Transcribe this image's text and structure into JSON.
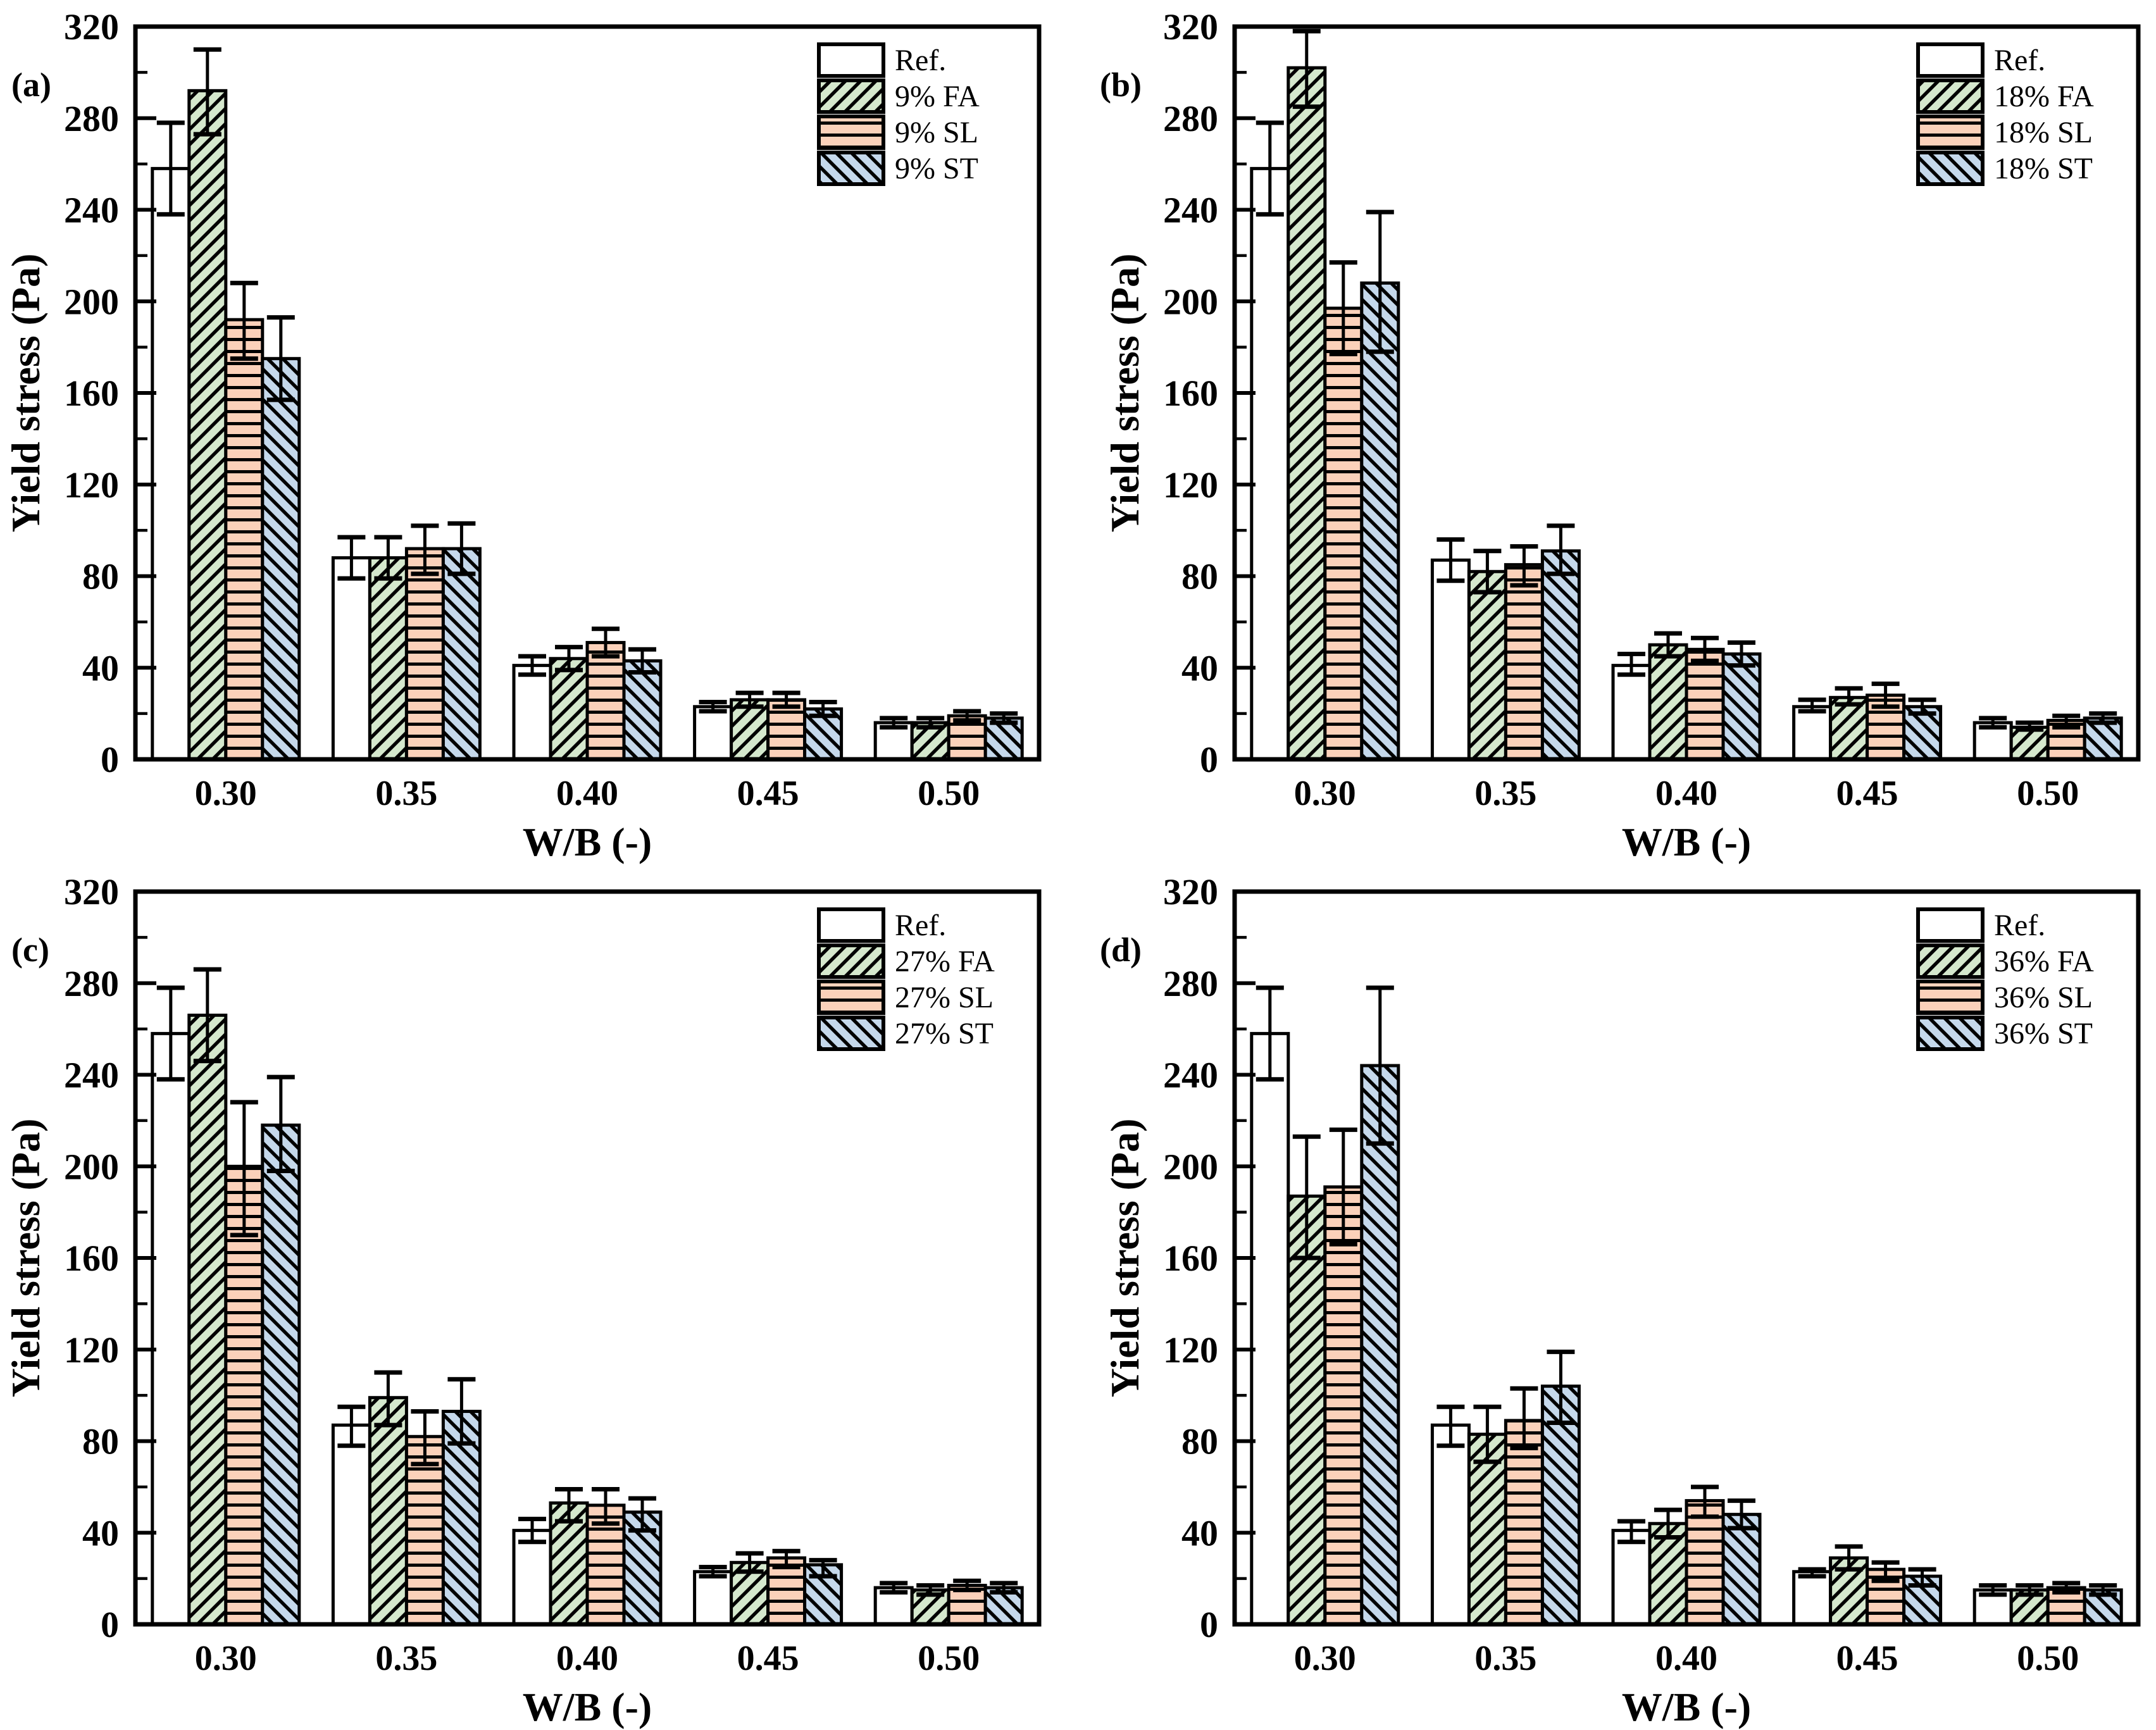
{
  "figure": {
    "background": "#ffffff",
    "ylabel": "Yield stress (Pa)",
    "xlabel": "W/B (-)",
    "categories": [
      "0.30",
      "0.35",
      "0.40",
      "0.45",
      "0.50"
    ],
    "ytick_labels": [
      "0",
      "40",
      "80",
      "120",
      "160",
      "200",
      "240",
      "280",
      "320"
    ],
    "ylim": [
      0,
      320
    ],
    "ytick_step": 40,
    "yminor_step": 20,
    "axis_color": "#000000",
    "error_bar_color": "#000000",
    "bar_edge_color": "#000000",
    "hatch_color": "#000000",
    "series_styles": [
      {
        "key": "ref",
        "fill": "#ffffff",
        "hatch": "none"
      },
      {
        "key": "fa",
        "fill": "#d5e8cd",
        "hatch": "forward-diagonal"
      },
      {
        "key": "sl",
        "fill": "#fbd1ba",
        "hatch": "horizontal"
      },
      {
        "key": "st",
        "fill": "#c5d8eb",
        "hatch": "back-diagonal"
      }
    ]
  },
  "chart_data": [
    {
      "type": "bar",
      "panel_label": "(a)",
      "xlabel": "W/B (-)",
      "ylabel": "Yield stress (Pa)",
      "categories": [
        "0.30",
        "0.35",
        "0.40",
        "0.45",
        "0.50"
      ],
      "ylim": [
        0,
        320
      ],
      "grid": false,
      "legend_position": "top-right",
      "legend": [
        "Ref.",
        "9% FA",
        "9% SL",
        "9% ST"
      ],
      "series": [
        {
          "name": "Ref.",
          "values": [
            258,
            88,
            41,
            23,
            16
          ],
          "err_low": [
            238,
            79,
            37,
            21,
            14
          ],
          "err_high": [
            278,
            97,
            45,
            25,
            18
          ]
        },
        {
          "name": "9% FA",
          "values": [
            292,
            88,
            44,
            26,
            16
          ],
          "err_low": [
            273,
            79,
            39,
            23,
            14
          ],
          "err_high": [
            310,
            97,
            49,
            29,
            18
          ]
        },
        {
          "name": "9% SL",
          "values": [
            192,
            92,
            51,
            26,
            19
          ],
          "err_low": [
            175,
            81,
            45,
            23,
            17
          ],
          "err_high": [
            208,
            102,
            57,
            29,
            21
          ]
        },
        {
          "name": "9% ST",
          "values": [
            175,
            92,
            43,
            22,
            18
          ],
          "err_low": [
            157,
            81,
            38,
            19,
            16
          ],
          "err_high": [
            193,
            103,
            48,
            25,
            20
          ]
        }
      ]
    },
    {
      "type": "bar",
      "panel_label": "(b)",
      "xlabel": "W/B (-)",
      "ylabel": "Yield stress (Pa)",
      "categories": [
        "0.30",
        "0.35",
        "0.40",
        "0.45",
        "0.50"
      ],
      "ylim": [
        0,
        320
      ],
      "grid": false,
      "legend_position": "top-right",
      "legend": [
        "Ref.",
        "18% FA",
        "18% SL",
        "18% ST"
      ],
      "series": [
        {
          "name": "Ref.",
          "values": [
            258,
            87,
            41,
            23,
            16
          ],
          "err_low": [
            238,
            78,
            37,
            21,
            14
          ],
          "err_high": [
            278,
            96,
            46,
            26,
            18
          ]
        },
        {
          "name": "18% FA",
          "values": [
            302,
            82,
            50,
            27,
            14
          ],
          "err_low": [
            285,
            73,
            45,
            24,
            13
          ],
          "err_high": [
            318,
            91,
            55,
            31,
            16
          ]
        },
        {
          "name": "18% SL",
          "values": [
            197,
            85,
            48,
            28,
            17
          ],
          "err_low": [
            177,
            76,
            43,
            23,
            14
          ],
          "err_high": [
            217,
            93,
            53,
            33,
            19
          ]
        },
        {
          "name": "18% ST",
          "values": [
            208,
            91,
            46,
            23,
            18
          ],
          "err_low": [
            178,
            81,
            41,
            20,
            16
          ],
          "err_high": [
            239,
            102,
            51,
            26,
            20
          ]
        }
      ]
    },
    {
      "type": "bar",
      "panel_label": "(c)",
      "xlabel": "W/B (-)",
      "ylabel": "Yield stress (Pa)",
      "categories": [
        "0.30",
        "0.35",
        "0.40",
        "0.45",
        "0.50"
      ],
      "ylim": [
        0,
        320
      ],
      "grid": false,
      "legend_position": "top-right",
      "legend": [
        "Ref.",
        "27% FA",
        "27% SL",
        "27% ST"
      ],
      "series": [
        {
          "name": "Ref.",
          "values": [
            258,
            87,
            41,
            23,
            16
          ],
          "err_low": [
            238,
            78,
            36,
            21,
            14
          ],
          "err_high": [
            278,
            95,
            46,
            25,
            18
          ]
        },
        {
          "name": "27% FA",
          "values": [
            266,
            99,
            53,
            27,
            15
          ],
          "err_low": [
            246,
            87,
            45,
            23,
            13
          ],
          "err_high": [
            286,
            110,
            59,
            31,
            17
          ]
        },
        {
          "name": "27% SL",
          "values": [
            200,
            82,
            52,
            29,
            17
          ],
          "err_low": [
            170,
            70,
            44,
            25,
            15
          ],
          "err_high": [
            228,
            93,
            59,
            32,
            19
          ]
        },
        {
          "name": "27% ST",
          "values": [
            218,
            93,
            49,
            26,
            16
          ],
          "err_low": [
            198,
            79,
            41,
            21,
            14
          ],
          "err_high": [
            239,
            107,
            55,
            28,
            18
          ]
        }
      ]
    },
    {
      "type": "bar",
      "panel_label": "(d)",
      "xlabel": "W/B (-)",
      "ylabel": "Yield stress (Pa)",
      "categories": [
        "0.30",
        "0.35",
        "0.40",
        "0.45",
        "0.50"
      ],
      "ylim": [
        0,
        320
      ],
      "grid": false,
      "legend_position": "top-right",
      "legend": [
        "Ref.",
        "36% FA",
        "36% SL",
        "36% ST"
      ],
      "series": [
        {
          "name": "Ref.",
          "values": [
            258,
            87,
            41,
            23,
            15
          ],
          "err_low": [
            238,
            78,
            36,
            21,
            13
          ],
          "err_high": [
            278,
            95,
            45,
            24,
            17
          ]
        },
        {
          "name": "36% FA",
          "values": [
            187,
            83,
            44,
            29,
            15
          ],
          "err_low": [
            160,
            71,
            38,
            24,
            13
          ],
          "err_high": [
            213,
            95,
            50,
            34,
            17
          ]
        },
        {
          "name": "36% SL",
          "values": [
            191,
            89,
            54,
            24,
            16
          ],
          "err_low": [
            166,
            77,
            47,
            19,
            14
          ],
          "err_high": [
            216,
            103,
            60,
            27,
            18
          ]
        },
        {
          "name": "36% ST",
          "values": [
            244,
            104,
            48,
            21,
            15
          ],
          "err_low": [
            210,
            88,
            42,
            17,
            13
          ],
          "err_high": [
            278,
            119,
            54,
            24,
            17
          ]
        }
      ]
    }
  ]
}
